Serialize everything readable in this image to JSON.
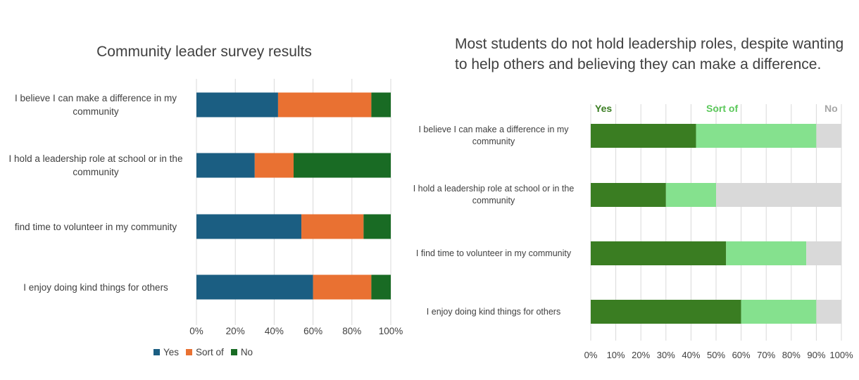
{
  "chart_data": [
    {
      "type": "bar",
      "orientation": "horizontal",
      "stacked": "percent",
      "title": "Community leader survey results",
      "categories": [
        "I believe I can make a difference in my community",
        "I hold a leadership role at school or in the community",
        "find time to volunteer in my community",
        "I enjoy doing kind things for others"
      ],
      "series": [
        {
          "name": "Yes",
          "color": "#1b5e82",
          "values": [
            42,
            30,
            54,
            60
          ]
        },
        {
          "name": "Sort of",
          "color": "#e97132",
          "values": [
            48,
            20,
            32,
            30
          ]
        },
        {
          "name": "No",
          "color": "#196b24",
          "values": [
            10,
            50,
            14,
            10
          ]
        }
      ],
      "xlim": [
        0,
        100
      ],
      "xticks": [
        "0%",
        "20%",
        "40%",
        "60%",
        "80%",
        "100%"
      ],
      "legend": "bottom-left",
      "grid": true
    },
    {
      "type": "bar",
      "orientation": "horizontal",
      "stacked": "percent",
      "title": "Most students do not hold leadership roles, despite wanting to help others and believing they can make a difference.",
      "categories": [
        "I believe I can make a difference in my community",
        "I hold a leadership role at school or in the community",
        "I find time to volunteer in my community",
        "I enjoy doing kind things for others"
      ],
      "series": [
        {
          "name": "Yes",
          "color": "#3a7d22",
          "values": [
            42,
            30,
            54,
            60
          ]
        },
        {
          "name": "Sort of",
          "color": "#85e18e",
          "values": [
            48,
            20,
            32,
            30
          ]
        },
        {
          "name": "No",
          "color": "#d9d9d9",
          "values": [
            10,
            50,
            14,
            10
          ]
        }
      ],
      "series_label_colors": [
        "#3a7d22",
        "#5bc85a",
        "#a6a6a6"
      ],
      "xlim": [
        0,
        100
      ],
      "xticks": [
        "0%",
        "10%",
        "20%",
        "30%",
        "40%",
        "50%",
        "60%",
        "70%",
        "80%",
        "90%",
        "100%"
      ],
      "legend": "top (direct labels)",
      "grid": true
    }
  ]
}
